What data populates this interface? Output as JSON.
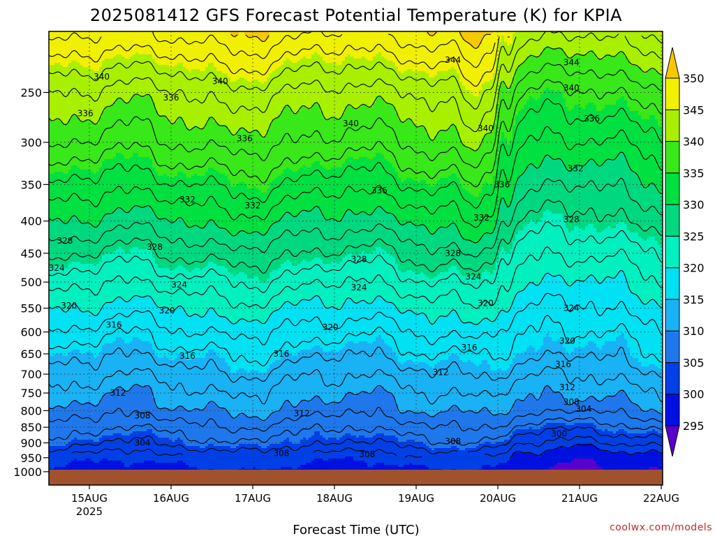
{
  "chart_data": {
    "type": "heatmap",
    "title": "2025081412 GFS Forecast Potential Temperature (K) for KPIA",
    "xlabel": "Forecast Time (UTC)",
    "ylabel": "",
    "credit": "coolwx.com/models",
    "x_ticks": [
      {
        "label": "15AUG",
        "sub": "2025",
        "day": 15
      },
      {
        "label": "16AUG",
        "sub": "",
        "day": 16
      },
      {
        "label": "17AUG",
        "sub": "",
        "day": 17
      },
      {
        "label": "18AUG",
        "sub": "",
        "day": 18
      },
      {
        "label": "19AUG",
        "sub": "",
        "day": 19
      },
      {
        "label": "20AUG",
        "sub": "",
        "day": 20
      },
      {
        "label": "21AUG",
        "sub": "",
        "day": 21
      },
      {
        "label": "22AUG",
        "sub": "",
        "day": 22
      }
    ],
    "xlim": [
      14.5,
      22
    ],
    "y_scale": "log",
    "ylim": [
      1050,
      200
    ],
    "y_ticks": [
      "250",
      "300",
      "350",
      "400",
      "450",
      "500",
      "550",
      "600",
      "650",
      "700",
      "750",
      "800",
      "850",
      "900",
      "950",
      "1000"
    ],
    "colorbar": {
      "ticks": [
        "295",
        "300",
        "305",
        "310",
        "315",
        "320",
        "325",
        "330",
        "335",
        "340",
        "345",
        "350"
      ],
      "levels": [
        290,
        295,
        300,
        305,
        310,
        315,
        320,
        325,
        330,
        335,
        340,
        345,
        350,
        355
      ],
      "colors": [
        "#5a00cc",
        "#0010e0",
        "#0040e6",
        "#1e78ec",
        "#19b2f4",
        "#00e1f3",
        "#00f0c0",
        "#00d880",
        "#00e040",
        "#38e818",
        "#a8f000",
        "#f0f000",
        "#f8c800"
      ]
    },
    "ground_color": "#a0522d",
    "contour_labels": [
      {
        "text": "340",
        "day": 15.15,
        "p": 236
      },
      {
        "text": "340",
        "day": 16.6,
        "p": 240
      },
      {
        "text": "344",
        "day": 19.45,
        "p": 222
      },
      {
        "text": "344",
        "day": 20.9,
        "p": 224
      },
      {
        "text": "340",
        "day": 20.9,
        "p": 246
      },
      {
        "text": "336",
        "day": 16.0,
        "p": 255
      },
      {
        "text": "336",
        "day": 14.95,
        "p": 270
      },
      {
        "text": "336",
        "day": 21.15,
        "p": 275
      },
      {
        "text": "340",
        "day": 18.2,
        "p": 280
      },
      {
        "text": "340",
        "day": 19.85,
        "p": 285
      },
      {
        "text": "336",
        "day": 16.9,
        "p": 296
      },
      {
        "text": "332",
        "day": 20.95,
        "p": 330
      },
      {
        "text": "336",
        "day": 20.05,
        "p": 350
      },
      {
        "text": "336",
        "day": 18.55,
        "p": 358
      },
      {
        "text": "332",
        "day": 16.2,
        "p": 370
      },
      {
        "text": "332",
        "day": 17.0,
        "p": 378
      },
      {
        "text": "332",
        "day": 19.8,
        "p": 395
      },
      {
        "text": "328",
        "day": 20.9,
        "p": 398
      },
      {
        "text": "328",
        "day": 14.7,
        "p": 430
      },
      {
        "text": "328",
        "day": 15.8,
        "p": 440
      },
      {
        "text": "328",
        "day": 19.45,
        "p": 450
      },
      {
        "text": "328",
        "day": 18.3,
        "p": 460
      },
      {
        "text": "324",
        "day": 14.6,
        "p": 475
      },
      {
        "text": "324",
        "day": 19.7,
        "p": 490
      },
      {
        "text": "324",
        "day": 16.1,
        "p": 505
      },
      {
        "text": "324",
        "day": 18.3,
        "p": 510
      },
      {
        "text": "320",
        "day": 19.85,
        "p": 540
      },
      {
        "text": "320",
        "day": 14.75,
        "p": 545
      },
      {
        "text": "320",
        "day": 15.95,
        "p": 555
      },
      {
        "text": "324",
        "day": 20.9,
        "p": 550
      },
      {
        "text": "316",
        "day": 15.3,
        "p": 585
      },
      {
        "text": "320",
        "day": 17.95,
        "p": 590
      },
      {
        "text": "320",
        "day": 20.85,
        "p": 620
      },
      {
        "text": "316",
        "day": 19.65,
        "p": 635
      },
      {
        "text": "316",
        "day": 17.35,
        "p": 650
      },
      {
        "text": "316",
        "day": 16.2,
        "p": 655
      },
      {
        "text": "316",
        "day": 20.8,
        "p": 675
      },
      {
        "text": "312",
        "day": 19.3,
        "p": 695
      },
      {
        "text": "312",
        "day": 15.35,
        "p": 750
      },
      {
        "text": "312",
        "day": 20.85,
        "p": 735
      },
      {
        "text": "308",
        "day": 20.9,
        "p": 775
      },
      {
        "text": "304",
        "day": 21.05,
        "p": 795
      },
      {
        "text": "312",
        "day": 17.6,
        "p": 808
      },
      {
        "text": "308",
        "day": 15.65,
        "p": 815
      },
      {
        "text": "300",
        "day": 20.75,
        "p": 870
      },
      {
        "text": "308",
        "day": 19.45,
        "p": 895
      },
      {
        "text": "304",
        "day": 15.65,
        "p": 900
      },
      {
        "text": "308",
        "day": 17.35,
        "p": 935
      },
      {
        "text": "308",
        "day": 18.4,
        "p": 938
      }
    ]
  }
}
